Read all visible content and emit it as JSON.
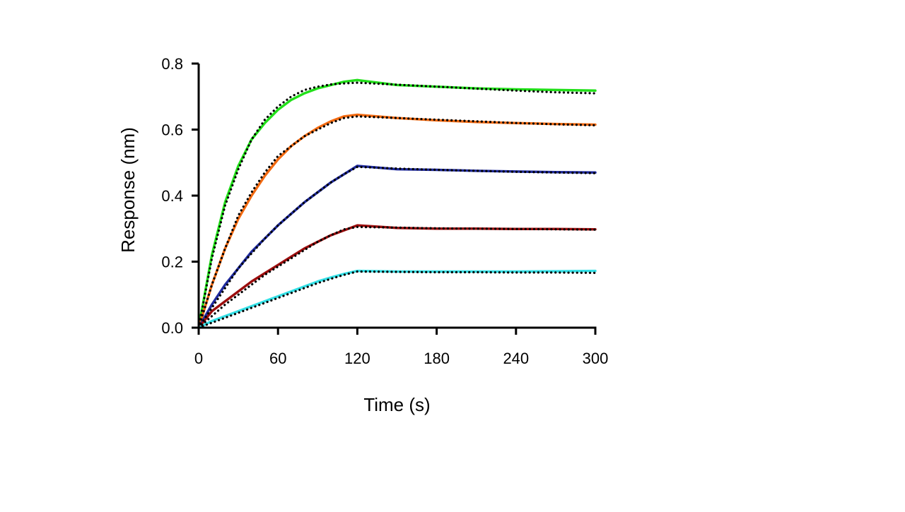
{
  "chart_data": {
    "type": "line",
    "title": "",
    "xlabel": "Time (s)",
    "ylabel": "Response (nm)",
    "xlim": [
      0,
      300
    ],
    "ylim": [
      0,
      0.8
    ],
    "x_ticks": [
      0,
      60,
      120,
      180,
      240,
      300
    ],
    "x_tick_labels": [
      "0",
      "60",
      "120",
      "180",
      "240",
      "300"
    ],
    "y_ticks": [
      0,
      0.2,
      0.4,
      0.6,
      0.8
    ],
    "y_tick_labels": [
      "0.0",
      "0.2",
      "0.4",
      "0.6",
      "0.8"
    ],
    "grid": false,
    "legend": "none",
    "association_end": 120,
    "series": [
      {
        "color": "#22e01a",
        "style": "solid",
        "x": [
          0,
          10,
          20,
          30,
          40,
          50,
          60,
          70,
          80,
          90,
          100,
          110,
          120,
          150,
          180,
          210,
          240,
          270,
          300
        ],
        "y": [
          0,
          0.22,
          0.38,
          0.49,
          0.57,
          0.62,
          0.66,
          0.69,
          0.71,
          0.725,
          0.735,
          0.745,
          0.75,
          0.735,
          0.73,
          0.725,
          0.722,
          0.72,
          0.718
        ]
      },
      {
        "color": "#000000",
        "style": "dotted",
        "x": [
          0,
          10,
          20,
          30,
          40,
          50,
          60,
          70,
          80,
          90,
          100,
          110,
          120,
          150,
          180,
          210,
          240,
          270,
          300
        ],
        "y": [
          0,
          0.21,
          0.37,
          0.48,
          0.57,
          0.63,
          0.67,
          0.7,
          0.72,
          0.73,
          0.737,
          0.74,
          0.742,
          0.736,
          0.73,
          0.724,
          0.718,
          0.713,
          0.71
        ]
      },
      {
        "color": "#f26a11",
        "style": "solid",
        "x": [
          0,
          10,
          20,
          30,
          40,
          50,
          60,
          70,
          80,
          90,
          100,
          110,
          120,
          150,
          180,
          210,
          240,
          270,
          300
        ],
        "y": [
          0,
          0.13,
          0.24,
          0.33,
          0.4,
          0.46,
          0.51,
          0.55,
          0.58,
          0.605,
          0.625,
          0.64,
          0.645,
          0.635,
          0.628,
          0.623,
          0.62,
          0.617,
          0.615
        ]
      },
      {
        "color": "#000000",
        "style": "dotted",
        "x": [
          0,
          10,
          20,
          30,
          40,
          50,
          60,
          70,
          80,
          90,
          100,
          110,
          120,
          150,
          180,
          210,
          240,
          270,
          300
        ],
        "y": [
          0,
          0.13,
          0.24,
          0.34,
          0.41,
          0.47,
          0.52,
          0.55,
          0.58,
          0.6,
          0.62,
          0.635,
          0.64,
          0.635,
          0.63,
          0.625,
          0.62,
          0.616,
          0.613
        ]
      },
      {
        "color": "#1f2a9e",
        "style": "solid",
        "x": [
          0,
          10,
          20,
          30,
          40,
          50,
          60,
          70,
          80,
          90,
          100,
          110,
          120,
          150,
          180,
          210,
          240,
          270,
          300
        ],
        "y": [
          0,
          0.07,
          0.13,
          0.18,
          0.23,
          0.27,
          0.31,
          0.345,
          0.38,
          0.41,
          0.44,
          0.465,
          0.49,
          0.48,
          0.478,
          0.475,
          0.473,
          0.471,
          0.47
        ]
      },
      {
        "color": "#000000",
        "style": "dotted",
        "x": [
          0,
          10,
          20,
          30,
          40,
          50,
          60,
          70,
          80,
          90,
          100,
          110,
          120,
          150,
          180,
          210,
          240,
          270,
          300
        ],
        "y": [
          0,
          0.06,
          0.12,
          0.18,
          0.225,
          0.27,
          0.31,
          0.345,
          0.38,
          0.41,
          0.44,
          0.465,
          0.487,
          0.482,
          0.478,
          0.475,
          0.472,
          0.47,
          0.468
        ]
      },
      {
        "color": "#9b0d0d",
        "style": "solid",
        "x": [
          0,
          10,
          20,
          30,
          40,
          50,
          60,
          70,
          80,
          90,
          100,
          110,
          120,
          150,
          180,
          210,
          240,
          270,
          300
        ],
        "y": [
          0,
          0.05,
          0.08,
          0.11,
          0.14,
          0.165,
          0.19,
          0.215,
          0.24,
          0.26,
          0.28,
          0.295,
          0.31,
          0.302,
          0.3,
          0.3,
          0.299,
          0.299,
          0.298
        ]
      },
      {
        "color": "#000000",
        "style": "dotted",
        "x": [
          0,
          10,
          20,
          30,
          40,
          50,
          60,
          70,
          80,
          90,
          100,
          110,
          120,
          150,
          180,
          210,
          240,
          270,
          300
        ],
        "y": [
          0,
          0.035,
          0.07,
          0.1,
          0.13,
          0.16,
          0.185,
          0.21,
          0.235,
          0.26,
          0.28,
          0.298,
          0.305,
          0.303,
          0.301,
          0.3,
          0.299,
          0.298,
          0.297
        ]
      },
      {
        "color": "#33e0e6",
        "style": "solid",
        "x": [
          0,
          10,
          20,
          30,
          40,
          50,
          60,
          70,
          80,
          90,
          100,
          110,
          120,
          150,
          180,
          210,
          240,
          270,
          300
        ],
        "y": [
          0,
          0.02,
          0.035,
          0.05,
          0.065,
          0.08,
          0.095,
          0.11,
          0.125,
          0.14,
          0.152,
          0.163,
          0.172,
          0.17,
          0.17,
          0.17,
          0.17,
          0.171,
          0.172
        ]
      },
      {
        "color": "#000000",
        "style": "dotted",
        "x": [
          0,
          10,
          20,
          30,
          40,
          50,
          60,
          70,
          80,
          90,
          100,
          110,
          120,
          150,
          180,
          210,
          240,
          270,
          300
        ],
        "y": [
          0,
          0.015,
          0.03,
          0.045,
          0.06,
          0.075,
          0.09,
          0.105,
          0.12,
          0.135,
          0.148,
          0.16,
          0.17,
          0.169,
          0.168,
          0.168,
          0.167,
          0.167,
          0.166
        ]
      }
    ]
  }
}
